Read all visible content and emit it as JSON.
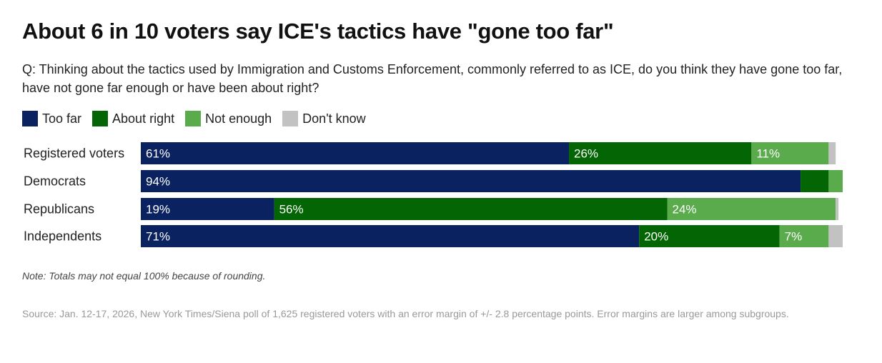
{
  "title": "About 6 in 10 voters say ICE's tactics have \"gone too far\"",
  "subtitle": "Q: Thinking about the tactics used by Immigration and Customs Enforcement, commonly referred to as ICE, do you think they have gone too far, have not gone far enough or have been about right?",
  "note": "Note: Totals may not equal 100% because of rounding.",
  "source": "Source: Jan. 12-17, 2026, New York Times/Siena poll of 1,625 registered voters with an error margin of +/- 2.8 percentage points. Error margins are larger among subgroups.",
  "colors": {
    "too_far": "#0b2260",
    "about_right": "#036503",
    "not_enough": "#5aab4c",
    "dont_know": "#c2c2c2"
  },
  "chart_data": {
    "type": "bar",
    "orientation": "horizontal",
    "stacked": true,
    "categories": [
      "Registered voters",
      "Democrats",
      "Republicans",
      "Independents"
    ],
    "series": [
      {
        "name": "Too far",
        "values": [
          61,
          94,
          19,
          71
        ],
        "labels": [
          "61%",
          "94%",
          "19%",
          "71%"
        ],
        "color": "#0b2260"
      },
      {
        "name": "About right",
        "values": [
          26,
          4,
          56,
          20
        ],
        "labels": [
          "26%",
          "",
          "56%",
          "20%"
        ],
        "color": "#036503"
      },
      {
        "name": "Not enough",
        "values": [
          11,
          2,
          24,
          7
        ],
        "labels": [
          "11%",
          "",
          "24%",
          "7%"
        ],
        "color": "#5aab4c"
      },
      {
        "name": "Don't know",
        "values": [
          1,
          0,
          0.4,
          2
        ],
        "labels": [
          "",
          "",
          "",
          ""
        ],
        "color": "#c2c2c2"
      }
    ],
    "xlim": [
      0,
      100
    ],
    "legend_position": "top-left",
    "grid": false
  }
}
